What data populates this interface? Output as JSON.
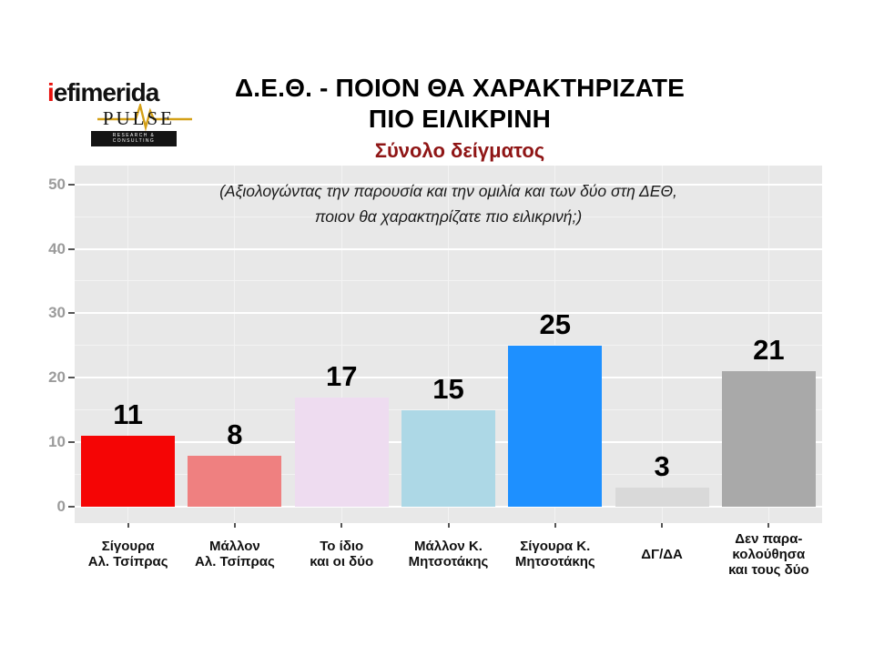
{
  "logo": {
    "brand_i": "i",
    "brand_rest": "efimerida",
    "sub_brand": "PULSE",
    "tagline": "RESEARCH & CONSULTING"
  },
  "header": {
    "title_line1": "Δ.Ε.Θ. - ΠΟΙΟΝ ΘΑ ΧΑΡΑΚΤΗΡΙΖΑΤΕ",
    "title_line2": "ΠΙΟ ΕΙΛΙΚΡΙΝΗ",
    "subtitle": "Σύνολο δείγματος"
  },
  "chart_data": {
    "type": "bar",
    "title": "Δ.Ε.Θ. - ΠΟΙΟΝ ΘΑ ΧΑΡΑΚΤΗΡΙΖΑΤΕ ΠΙΟ ΕΙΛΙΚΡΙΝΗ",
    "subtitle": "Σύνολο δείγματος",
    "annotation_lines": [
      "(Αξιολογώντας την παρουσία και την ομιλία και των δύο στη ΔΕΘ,",
      "ποιον θα χαρακτηρίζατε πιο ειλικρινή;)"
    ],
    "categories": [
      [
        "Σίγουρα",
        "Αλ. Τσίπρας"
      ],
      [
        "Μάλλον",
        "Αλ. Τσίπρας"
      ],
      [
        "Το ίδιο",
        "και οι δύο"
      ],
      [
        "Μάλλον Κ.",
        "Μητσοτάκης"
      ],
      [
        "Σίγουρα Κ.",
        "Μητσοτάκης"
      ],
      [
        "ΔΓ/ΔΑ"
      ],
      [
        "Δεν παρα-",
        "κολούθησα",
        "και τους δύο"
      ]
    ],
    "values": [
      11,
      8,
      17,
      15,
      25,
      3,
      21
    ],
    "bar_colors": [
      "#f50505",
      "#ef8080",
      "#eedcf0",
      "#add8e6",
      "#1e90ff",
      "#d9d9d9",
      "#a9a9a9"
    ],
    "yticks": [
      0,
      10,
      20,
      30,
      40,
      50
    ],
    "yticks_minor": [
      5,
      15,
      25,
      35,
      45
    ],
    "ylim": [
      0,
      50
    ],
    "xlabel": "",
    "ylabel": "",
    "grid": true,
    "legend": false
  },
  "colors": {
    "page_bg": "#ffffff",
    "panel_bg": "#e8e8e8",
    "grid_major": "#ffffff",
    "grid_minor": "#f3f3f3",
    "axis_text": "#9b9b9b",
    "tick_mark": "#555555",
    "title": "#000000",
    "subtitle": "#8f1515",
    "annotation": "#1a1a1a",
    "value_label": "#000000",
    "brand_red": "#e8100c",
    "brand_black": "#141414",
    "pulse_gold": "#d4a017"
  }
}
